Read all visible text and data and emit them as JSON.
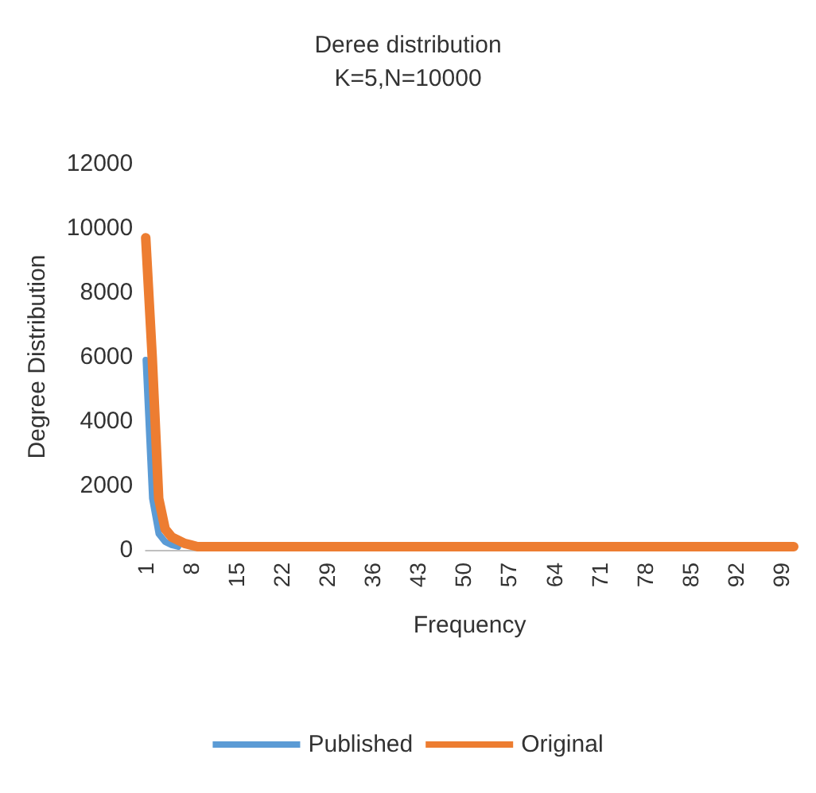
{
  "chart_data": {
    "type": "line",
    "title": "Deree distribution",
    "subtitle": "K=5,N=10000",
    "xlabel": "Frequency",
    "ylabel": "Degree Distribution",
    "categories": [
      "1",
      null,
      null,
      null,
      null,
      null,
      null,
      "8",
      null,
      null,
      null,
      null,
      null,
      null,
      "15",
      null,
      null,
      null,
      null,
      null,
      null,
      "22",
      null,
      null,
      null,
      null,
      null,
      null,
      "29",
      null,
      null,
      null,
      null,
      null,
      null,
      "36",
      null,
      null,
      null,
      null,
      null,
      null,
      "43",
      null,
      null,
      null,
      null,
      null,
      null,
      "50",
      null,
      null,
      null,
      null,
      null,
      null,
      "57",
      null,
      null,
      null,
      null,
      null,
      null,
      "64",
      null,
      null,
      null,
      null,
      null,
      null,
      "71",
      null,
      null,
      null,
      null,
      null,
      null,
      "78",
      null,
      null,
      null,
      null,
      null,
      null,
      "85",
      null,
      null,
      null,
      null,
      null,
      null,
      "92",
      null,
      null,
      null,
      null,
      null,
      null,
      "99",
      null,
      null
    ],
    "series": [
      {
        "name": "Published",
        "color": "#5b9bd5",
        "values": [
          5900,
          1600,
          500,
          250,
          150,
          100,
          null,
          null,
          null,
          null,
          null,
          null,
          null,
          null,
          null,
          null,
          null,
          null,
          null,
          null,
          null,
          null,
          null,
          null,
          null,
          null,
          null,
          null,
          null,
          null,
          null,
          null,
          null,
          null,
          null,
          null,
          null,
          null,
          null,
          null,
          null,
          null,
          null,
          null,
          null,
          null,
          null,
          null,
          null,
          null,
          null,
          null,
          null,
          null,
          null,
          null,
          null,
          null,
          null,
          null,
          null,
          null,
          null,
          null,
          null,
          null,
          null,
          null,
          null,
          null,
          null,
          null,
          null,
          null,
          null,
          null,
          null,
          null,
          null,
          null,
          null,
          null,
          null,
          null,
          null,
          null,
          null,
          null,
          null,
          null,
          null,
          null,
          null,
          null,
          null,
          null,
          null,
          null,
          null,
          null,
          null
        ]
      },
      {
        "name": "Original",
        "color": "#ed7d31",
        "values": [
          9700,
          6000,
          1600,
          650,
          400,
          300,
          200,
          150,
          100,
          100,
          100,
          100,
          100,
          100,
          100,
          100,
          100,
          100,
          100,
          100,
          100,
          100,
          100,
          100,
          100,
          100,
          100,
          100,
          100,
          100,
          100,
          100,
          100,
          100,
          100,
          100,
          100,
          100,
          100,
          100,
          100,
          100,
          100,
          100,
          100,
          100,
          100,
          100,
          100,
          100,
          100,
          100,
          100,
          100,
          100,
          100,
          100,
          100,
          100,
          100,
          100,
          100,
          100,
          100,
          100,
          100,
          100,
          100,
          100,
          100,
          100,
          100,
          100,
          100,
          100,
          100,
          100,
          100,
          100,
          100,
          100,
          100,
          100,
          100,
          100,
          100,
          100,
          100,
          100,
          100,
          100,
          100,
          100,
          100,
          100,
          100,
          100,
          100,
          100,
          100,
          100
        ]
      }
    ],
    "ylim": [
      0,
      12000
    ],
    "yticks": [
      0,
      2000,
      4000,
      6000,
      8000,
      10000,
      12000
    ],
    "grid": false,
    "legend": "bottom",
    "marker": "none",
    "line_style": "solid"
  }
}
